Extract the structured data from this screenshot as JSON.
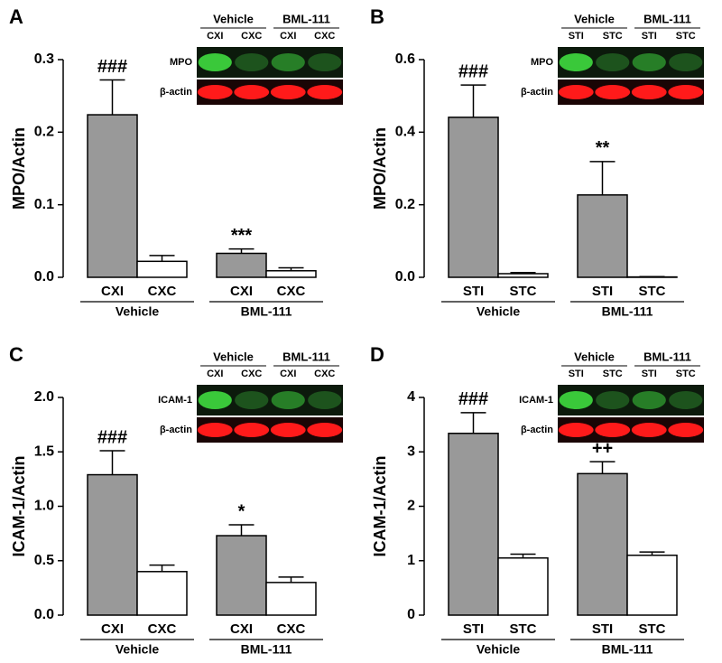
{
  "chart_data": [
    {
      "type": "bar",
      "panel_label": "A",
      "ylabel": "MPO/Actin",
      "categories": [
        "CXI",
        "CXC",
        "CXI",
        "CXC"
      ],
      "groups": [
        "Vehicle",
        "BML-111"
      ],
      "values": [
        0.224,
        0.022,
        0.033,
        0.009
      ],
      "errors": [
        0.048,
        0.008,
        0.006,
        0.004
      ],
      "annotations": [
        "###",
        null,
        "***",
        null
      ],
      "colors": [
        "#999999",
        "#ffffff",
        "#999999",
        "#ffffff"
      ],
      "ylim": [
        0,
        0.3
      ],
      "yticks": [
        {
          "value": 0,
          "label": "0.0"
        },
        0.1,
        0.2,
        0.3
      ],
      "blot": {
        "groups": [
          "Vehicle",
          "BML-111"
        ],
        "lanes": [
          "CXI",
          "CXC",
          "CXI",
          "CXC"
        ],
        "rows": [
          "MPO",
          "β-actin"
        ]
      }
    },
    {
      "type": "bar",
      "panel_label": "B",
      "ylabel": "MPO/Actin",
      "categories": [
        "STI",
        "STC",
        "STI",
        "STC"
      ],
      "groups": [
        "Vehicle",
        "BML-111"
      ],
      "values": [
        0.441,
        0.01,
        0.227,
        0.001
      ],
      "errors": [
        0.089,
        0.003,
        0.092,
        0.001
      ],
      "annotations": [
        "###",
        null,
        "**",
        null
      ],
      "colors": [
        "#999999",
        "#ffffff",
        "#999999",
        "#ffffff"
      ],
      "ylim": [
        0,
        0.6
      ],
      "yticks": [
        {
          "value": 0,
          "label": "0.0"
        },
        0.2,
        0.4,
        0.6
      ],
      "blot": {
        "groups": [
          "Vehicle",
          "BML-111"
        ],
        "lanes": [
          "STI",
          "STC",
          "STI",
          "STC"
        ],
        "rows": [
          "MPO",
          "β-actin"
        ]
      }
    },
    {
      "type": "bar",
      "panel_label": "C",
      "ylabel": "ICAM-1/Actin",
      "categories": [
        "CXI",
        "CXC",
        "CXI",
        "CXC"
      ],
      "groups": [
        "Vehicle",
        "BML-111"
      ],
      "values": [
        1.29,
        0.4,
        0.73,
        0.3
      ],
      "errors": [
        0.22,
        0.06,
        0.1,
        0.05
      ],
      "annotations": [
        "###",
        null,
        "*",
        null
      ],
      "colors": [
        "#999999",
        "#ffffff",
        "#999999",
        "#ffffff"
      ],
      "ylim": [
        0,
        2
      ],
      "yticks": [
        {
          "value": 0,
          "label": "0.0"
        },
        0.5,
        {
          "value": 1,
          "label": "1.0"
        },
        1.5,
        {
          "value": 2,
          "label": "2.0"
        }
      ],
      "blot": {
        "groups": [
          "Vehicle",
          "BML-111"
        ],
        "lanes": [
          "CXI",
          "CXC",
          "CXI",
          "CXC"
        ],
        "rows": [
          "ICAM-1",
          "β-actin"
        ]
      }
    },
    {
      "type": "bar",
      "panel_label": "D",
      "ylabel": "ICAM-1/Actin",
      "categories": [
        "STI",
        "STC",
        "STI",
        "STC"
      ],
      "groups": [
        "Vehicle",
        "BML-111"
      ],
      "values": [
        3.34,
        1.05,
        2.6,
        1.1
      ],
      "errors": [
        0.38,
        0.07,
        0.22,
        0.06
      ],
      "annotations": [
        "###",
        null,
        "++",
        null
      ],
      "colors": [
        "#999999",
        "#ffffff",
        "#999999",
        "#ffffff"
      ],
      "ylim": [
        0,
        4
      ],
      "yticks": [
        0,
        1,
        2,
        3,
        4
      ],
      "blot": {
        "groups": [
          "Vehicle",
          "BML-111"
        ],
        "lanes": [
          "STI",
          "STC",
          "STI",
          "STC"
        ],
        "rows": [
          "ICAM-1",
          "β-actin"
        ]
      }
    }
  ]
}
